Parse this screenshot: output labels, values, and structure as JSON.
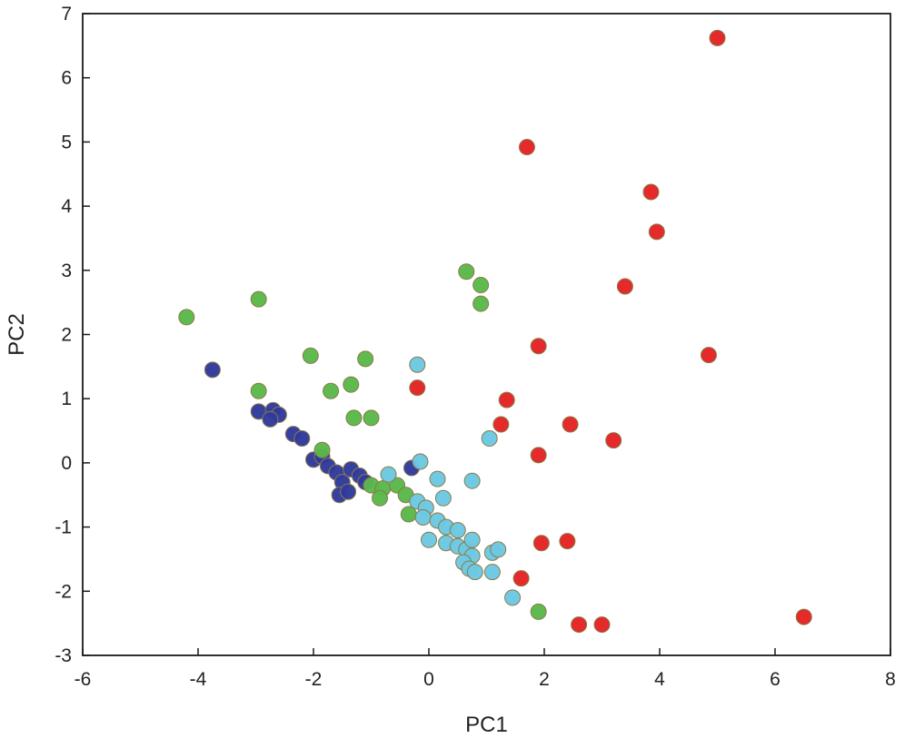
{
  "chart_data": {
    "type": "scatter",
    "title": "",
    "xlabel": "PC1",
    "ylabel": "PC2",
    "xlim": [
      -6,
      8
    ],
    "ylim": [
      -3,
      7
    ],
    "xticks": [
      -6,
      -4,
      -2,
      0,
      2,
      4,
      6,
      8
    ],
    "yticks": [
      -3,
      -2,
      -1,
      0,
      1,
      2,
      3,
      4,
      5,
      6,
      7
    ],
    "grid": false,
    "legend": "none",
    "series": [
      {
        "color": "#2f3a9c",
        "points": [
          [
            -3.75,
            1.45
          ],
          [
            -2.95,
            0.8
          ],
          [
            -2.7,
            0.82
          ],
          [
            -2.6,
            0.75
          ],
          [
            -2.75,
            0.68
          ],
          [
            -2.35,
            0.45
          ],
          [
            -2.2,
            0.38
          ],
          [
            -2.0,
            0.05
          ],
          [
            -1.85,
            0.1
          ],
          [
            -1.75,
            -0.05
          ],
          [
            -1.6,
            -0.15
          ],
          [
            -1.5,
            -0.3
          ],
          [
            -1.55,
            -0.5
          ],
          [
            -1.4,
            -0.45
          ],
          [
            -1.35,
            -0.1
          ],
          [
            -1.2,
            -0.2
          ],
          [
            -1.1,
            -0.3
          ],
          [
            -0.3,
            -0.08
          ]
        ]
      },
      {
        "color": "#5ab94a",
        "points": [
          [
            -4.2,
            2.27
          ],
          [
            -2.95,
            2.55
          ],
          [
            -2.95,
            1.12
          ],
          [
            -2.05,
            1.67
          ],
          [
            -1.7,
            1.12
          ],
          [
            -1.35,
            1.22
          ],
          [
            -1.1,
            1.62
          ],
          [
            -1.3,
            0.7
          ],
          [
            -1.0,
            0.7
          ],
          [
            0.65,
            2.98
          ],
          [
            0.9,
            2.77
          ],
          [
            0.9,
            2.48
          ],
          [
            -1.85,
            0.2
          ],
          [
            -1.0,
            -0.35
          ],
          [
            -0.8,
            -0.4
          ],
          [
            -0.55,
            -0.35
          ],
          [
            -0.4,
            -0.5
          ],
          [
            -0.85,
            -0.55
          ],
          [
            -0.35,
            -0.8
          ],
          [
            1.9,
            -2.32
          ]
        ]
      },
      {
        "color": "#6cc8e2",
        "points": [
          [
            -0.2,
            1.53
          ],
          [
            -0.15,
            0.02
          ],
          [
            1.05,
            0.38
          ],
          [
            0.15,
            -0.25
          ],
          [
            0.75,
            -0.28
          ],
          [
            -0.7,
            -0.18
          ],
          [
            0.25,
            -0.55
          ],
          [
            -0.2,
            -0.6
          ],
          [
            -0.05,
            -0.7
          ],
          [
            -0.1,
            -0.85
          ],
          [
            0.15,
            -0.9
          ],
          [
            0.3,
            -1.0
          ],
          [
            0.5,
            -1.05
          ],
          [
            0.0,
            -1.2
          ],
          [
            0.3,
            -1.25
          ],
          [
            0.5,
            -1.3
          ],
          [
            0.65,
            -1.35
          ],
          [
            0.75,
            -1.45
          ],
          [
            0.6,
            -1.55
          ],
          [
            0.7,
            -1.65
          ],
          [
            0.8,
            -1.7
          ],
          [
            0.75,
            -1.2
          ],
          [
            1.1,
            -1.4
          ],
          [
            1.2,
            -1.35
          ],
          [
            1.1,
            -1.7
          ],
          [
            1.45,
            -2.1
          ]
        ]
      },
      {
        "color": "#e32323",
        "points": [
          [
            5.0,
            6.62
          ],
          [
            1.7,
            4.92
          ],
          [
            3.85,
            4.22
          ],
          [
            3.95,
            3.6
          ],
          [
            3.4,
            2.75
          ],
          [
            1.9,
            1.82
          ],
          [
            4.85,
            1.68
          ],
          [
            -0.2,
            1.17
          ],
          [
            1.35,
            0.98
          ],
          [
            1.25,
            0.6
          ],
          [
            2.45,
            0.6
          ],
          [
            3.2,
            0.35
          ],
          [
            1.9,
            0.12
          ],
          [
            1.95,
            -1.25
          ],
          [
            2.4,
            -1.22
          ],
          [
            1.6,
            -1.8
          ],
          [
            2.6,
            -2.52
          ],
          [
            3.0,
            -2.52
          ],
          [
            6.5,
            -2.4
          ]
        ]
      }
    ]
  }
}
